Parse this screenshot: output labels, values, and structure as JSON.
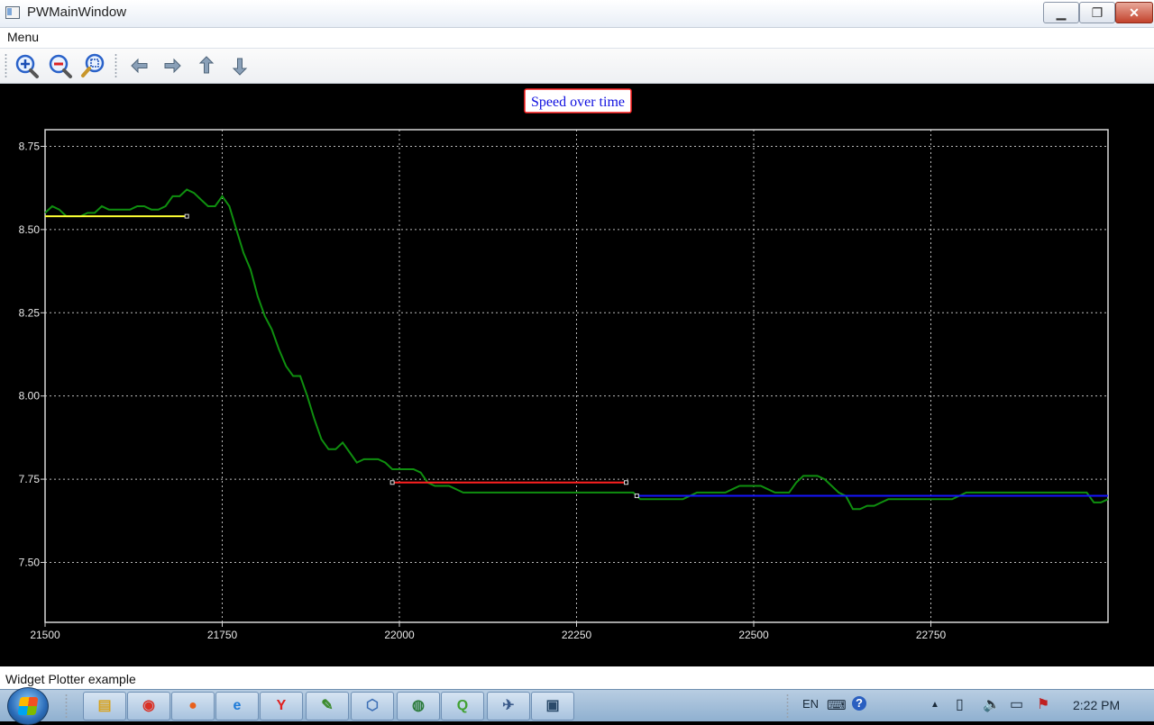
{
  "window": {
    "title": "PWMainWindow",
    "minimize_glyph": "▁",
    "maximize_glyph": "❐",
    "close_glyph": "✕"
  },
  "menu": {
    "items": [
      "Menu"
    ]
  },
  "toolbar": {
    "icons": [
      "zoom-in-icon",
      "zoom-out-icon",
      "zoom-fit-icon",
      "arrow-left-icon",
      "arrow-right-icon",
      "arrow-up-icon",
      "arrow-down-icon"
    ]
  },
  "chart_data": {
    "type": "line",
    "title": "Speed over time",
    "xlim": [
      21500,
      23000
    ],
    "ylim": [
      7.32,
      8.8
    ],
    "xticks": [
      21500,
      21750,
      22000,
      22250,
      22500,
      22750
    ],
    "xtick_labels": [
      "21500",
      "21750",
      "22000",
      "22250",
      "22500",
      "22750"
    ],
    "yticks": [
      7.5,
      7.75,
      8.0,
      8.25,
      8.5,
      8.75
    ],
    "ytick_labels": [
      "7.50",
      "7.75",
      "8.00",
      "8.25",
      "8.50",
      "8.75"
    ],
    "grid": true,
    "colors": {
      "speed": "#0f8f0f",
      "segment1": "#ffff33",
      "segment2": "#ff2020",
      "segment3": "#1515ff",
      "frame": "#d8d8d8",
      "title_border": "#ff2020",
      "title_text": "#1010e0"
    },
    "series": [
      {
        "x": [
          21500,
          21510,
          21520,
          21530,
          21540,
          21550,
          21560,
          21570,
          21580,
          21590,
          21600,
          21610,
          21620,
          21630,
          21640,
          21650,
          21660,
          21670,
          21680,
          21690,
          21700,
          21710,
          21720,
          21730,
          21740,
          21750,
          21760,
          21770,
          21780,
          21790,
          21800,
          21810,
          21820,
          21830,
          21840,
          21850,
          21860,
          21870,
          21880,
          21890,
          21900,
          21910,
          21920,
          21930,
          21940,
          21950,
          21960,
          21970,
          21980,
          21990,
          22000,
          22010,
          22020,
          22030,
          22040,
          22050,
          22060,
          22070,
          22080,
          22090,
          22100,
          22110,
          22120,
          22130,
          22140,
          22150,
          22200,
          22250,
          22300,
          22330,
          22340,
          22350,
          22360,
          22400,
          22420,
          22440,
          22460,
          22470,
          22480,
          22500,
          22510,
          22520,
          22530,
          22550,
          22560,
          22570,
          22580,
          22590,
          22600,
          22610,
          22620,
          22630,
          22640,
          22650,
          22660,
          22670,
          22680,
          22690,
          22700,
          22720,
          22740,
          22760,
          22780,
          22790,
          22800,
          22850,
          22900,
          22950,
          22970,
          22980,
          22990,
          23000
        ],
        "y": [
          8.55,
          8.57,
          8.56,
          8.54,
          8.54,
          8.54,
          8.55,
          8.55,
          8.57,
          8.56,
          8.56,
          8.56,
          8.56,
          8.57,
          8.57,
          8.56,
          8.56,
          8.57,
          8.6,
          8.6,
          8.62,
          8.61,
          8.59,
          8.57,
          8.57,
          8.6,
          8.57,
          8.5,
          8.43,
          8.38,
          8.3,
          8.24,
          8.2,
          8.14,
          8.09,
          8.06,
          8.06,
          8.0,
          7.93,
          7.87,
          7.84,
          7.84,
          7.86,
          7.83,
          7.8,
          7.81,
          7.81,
          7.81,
          7.8,
          7.78,
          7.78,
          7.78,
          7.78,
          7.77,
          7.74,
          7.73,
          7.73,
          7.73,
          7.72,
          7.71,
          7.71,
          7.71,
          7.71,
          7.71,
          7.71,
          7.71,
          7.71,
          7.71,
          7.71,
          7.71,
          7.69,
          7.69,
          7.69,
          7.69,
          7.71,
          7.71,
          7.71,
          7.72,
          7.73,
          7.73,
          7.73,
          7.72,
          7.71,
          7.71,
          7.74,
          7.76,
          7.76,
          7.76,
          7.75,
          7.73,
          7.71,
          7.7,
          7.66,
          7.66,
          7.67,
          7.67,
          7.68,
          7.69,
          7.69,
          7.69,
          7.69,
          7.69,
          7.69,
          7.7,
          7.71,
          7.71,
          7.71,
          7.71,
          7.71,
          7.68,
          7.68,
          7.69
        ]
      }
    ],
    "segments": [
      {
        "x": [
          21500,
          21700
        ],
        "y": [
          8.54,
          8.54
        ]
      },
      {
        "x": [
          21990,
          22320
        ],
        "y": [
          7.74,
          7.74
        ]
      },
      {
        "x": [
          22335,
          23000
        ],
        "y": [
          7.7,
          7.7
        ]
      }
    ]
  },
  "status": {
    "text": "Widget Plotter example"
  },
  "taskbar": {
    "apps": [
      "file-explorer-icon",
      "chrome-icon",
      "firefox-icon",
      "internet-explorer-icon",
      "yandex-icon",
      "notepad-icon",
      "box-icon",
      "globe-icon",
      "qt-icon",
      "tool-icon",
      "window-icon"
    ],
    "tray": {
      "language": "EN",
      "help": "?",
      "up_arrow": "▲"
    },
    "clock": "2:22 PM"
  }
}
